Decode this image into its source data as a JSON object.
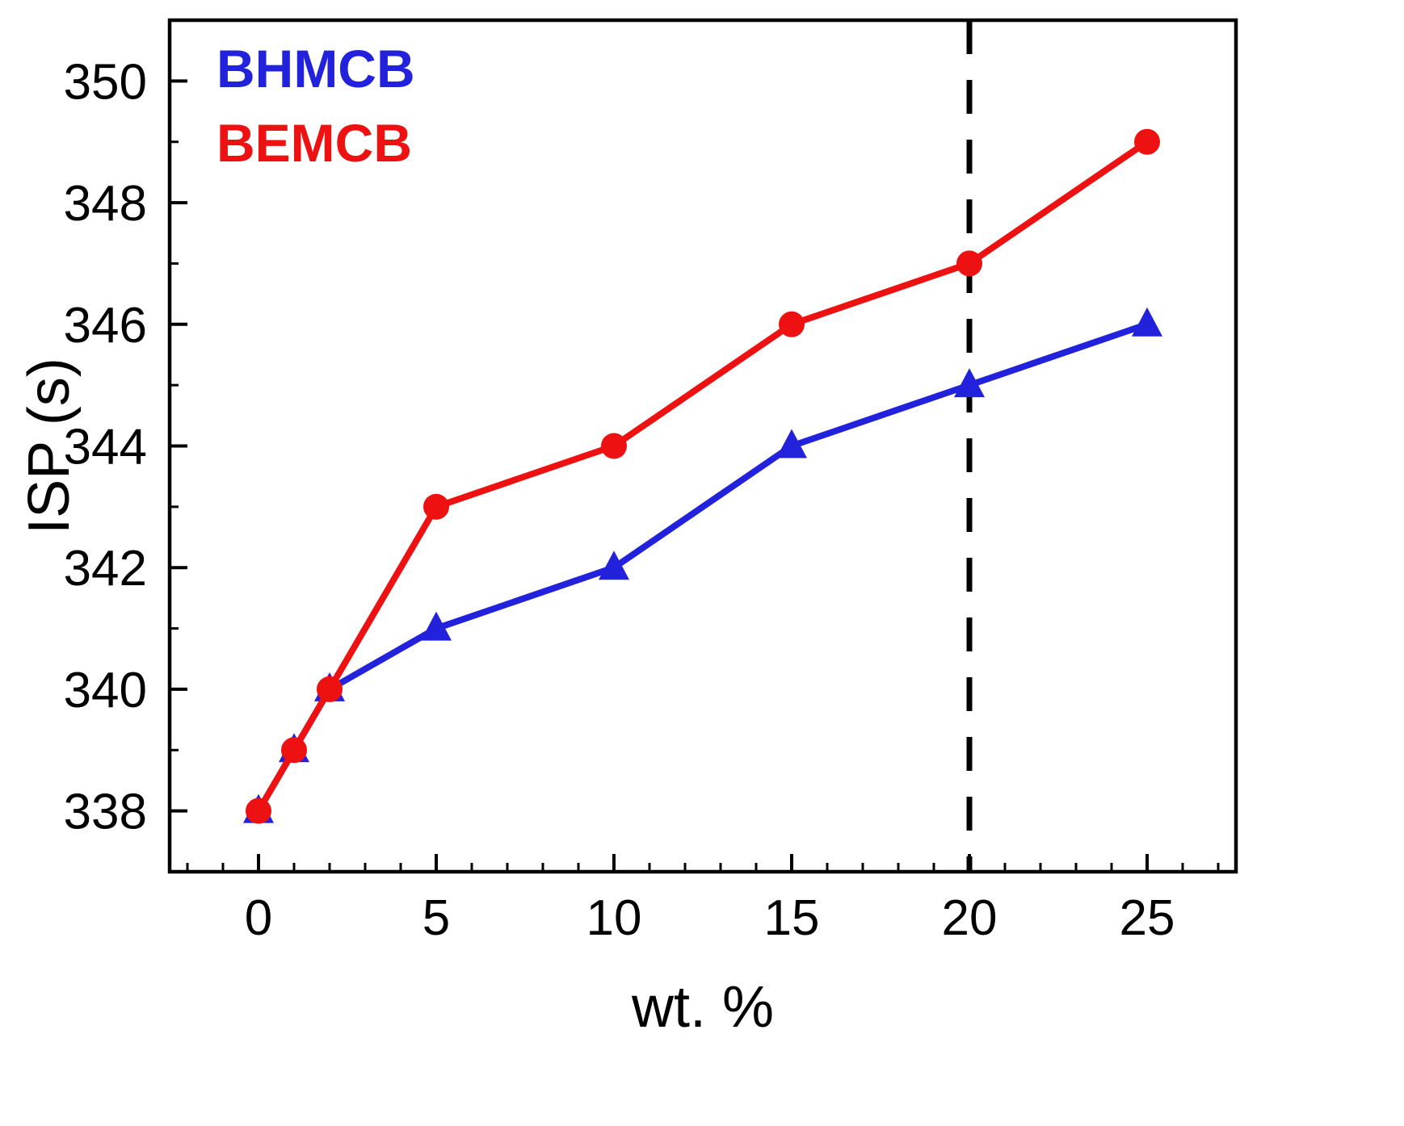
{
  "figure": {
    "background_color": "#ffffff",
    "axis_color": "#000000",
    "text_color": "#000000"
  },
  "chart_data": {
    "type": "line",
    "title": "",
    "xlabel": "wt. %",
    "ylabel": "ISP (s)",
    "xlim": [
      -2.5,
      27.5
    ],
    "ylim": [
      337,
      351
    ],
    "x_ticks": [
      0,
      5,
      10,
      15,
      20,
      25
    ],
    "y_ticks": [
      338,
      340,
      342,
      344,
      346,
      348,
      350
    ],
    "grid": false,
    "legend_position": "top-left",
    "x": [
      0,
      1,
      2,
      5,
      10,
      15,
      20,
      25
    ],
    "series": [
      {
        "name": "BHMCB",
        "color": "#2222dd",
        "marker": "triangle",
        "values": [
          338,
          339,
          340,
          341,
          342,
          344,
          345,
          346
        ]
      },
      {
        "name": "BEMCB",
        "color": "#ee1111",
        "marker": "circle",
        "values": [
          338,
          339,
          340,
          343,
          344,
          346,
          347,
          349
        ]
      }
    ],
    "reference_line": {
      "x": 20,
      "style": "dashed",
      "color": "#000000"
    }
  }
}
